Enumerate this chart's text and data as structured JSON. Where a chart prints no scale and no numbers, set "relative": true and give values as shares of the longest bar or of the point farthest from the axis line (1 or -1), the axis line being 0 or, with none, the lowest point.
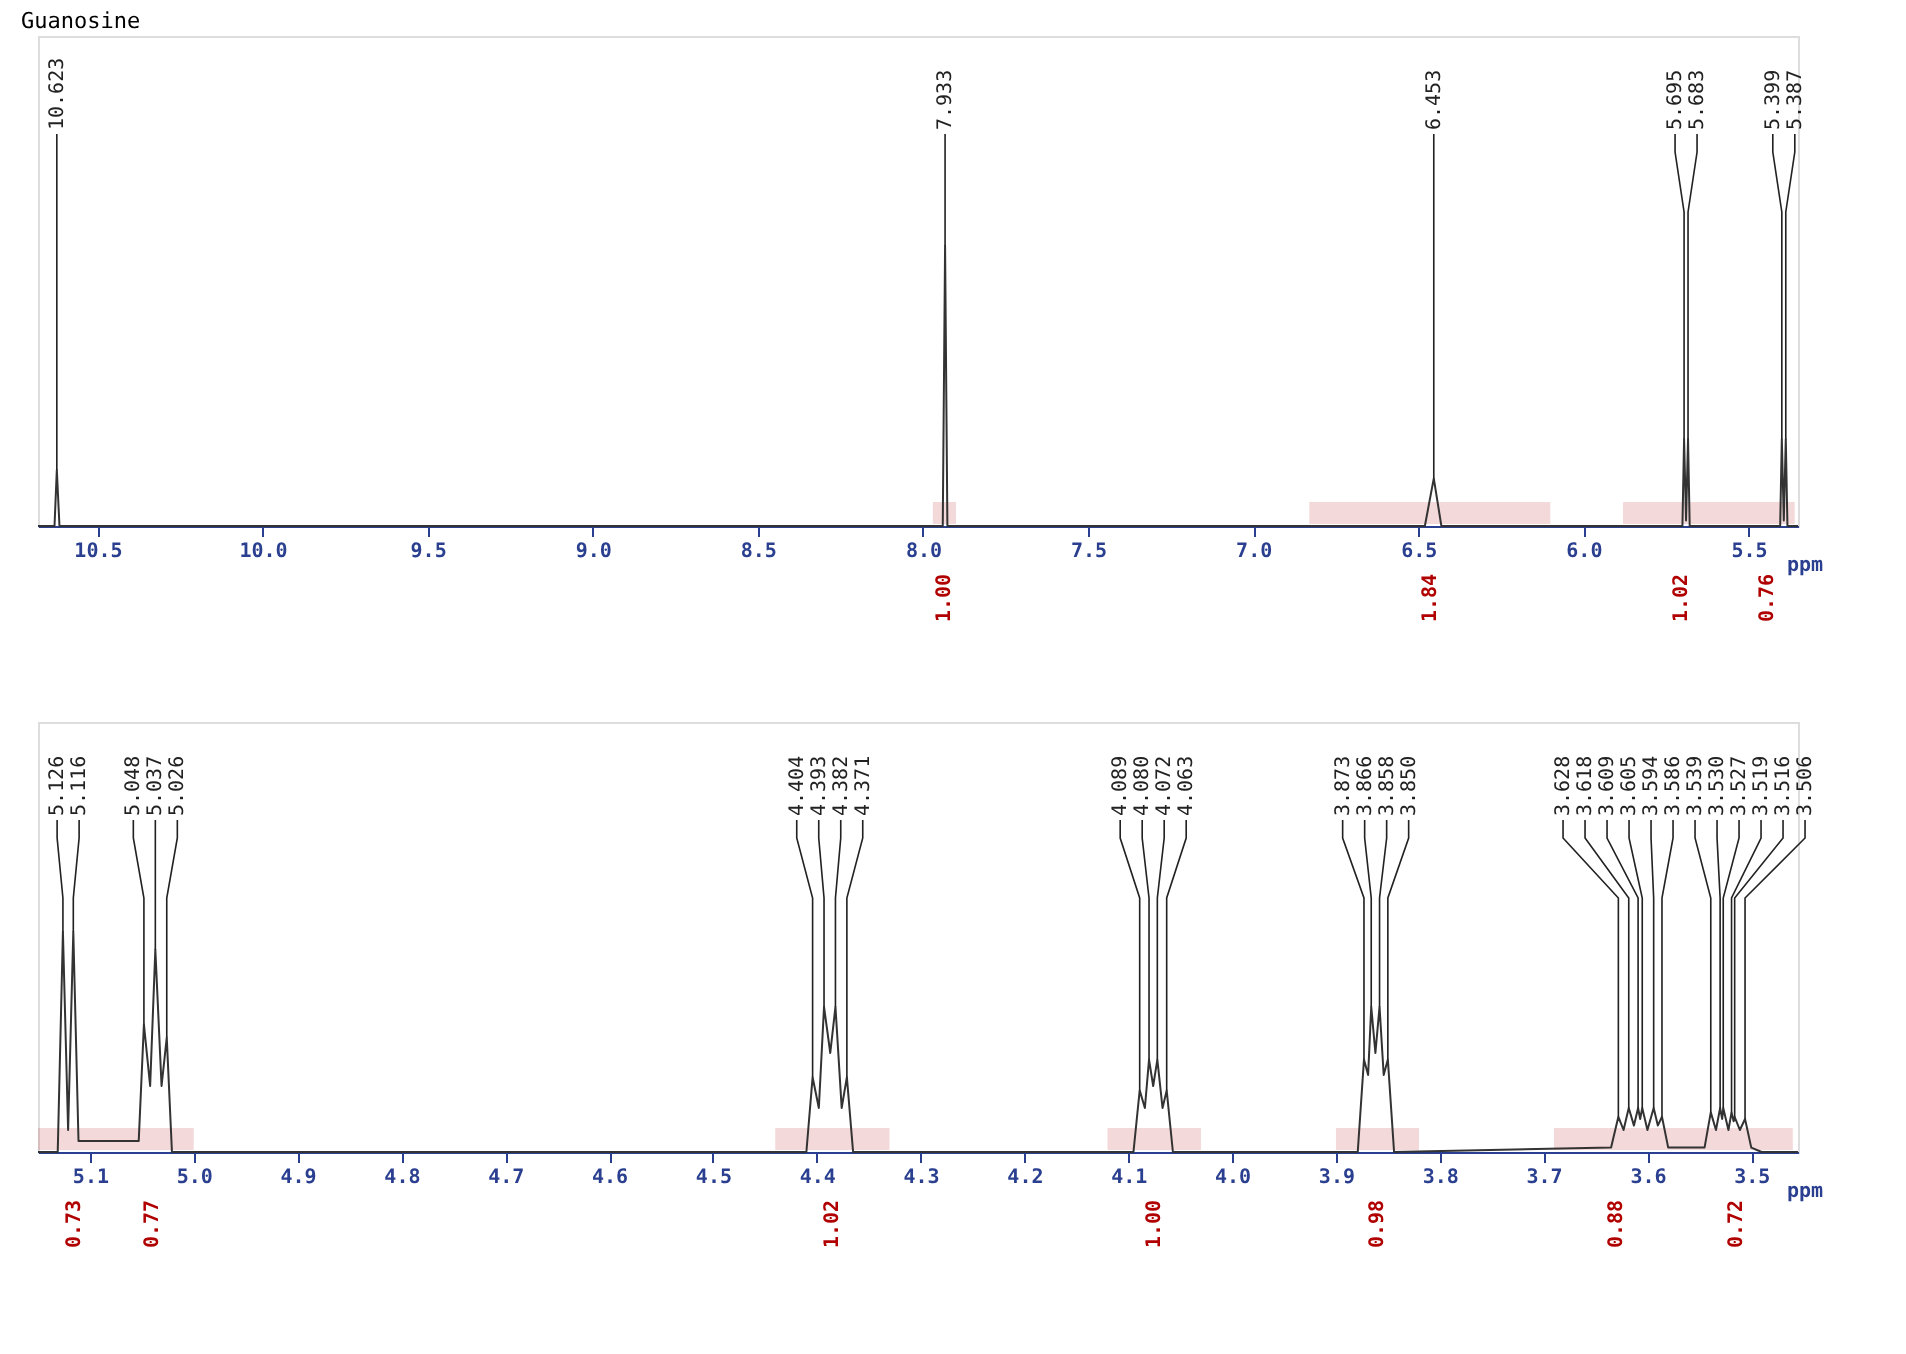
{
  "chart_data": [
    {
      "type": "line",
      "title": "Guanosine",
      "xlabel": "ppm",
      "relative": true,
      "xlim": [
        10.68,
        5.35
      ],
      "xticks": [
        10.5,
        {
          "value": 10,
          "label": "10.0"
        },
        9.5,
        {
          "value": 9,
          "label": "9.0"
        },
        8.5,
        {
          "value": 8,
          "label": "8.0"
        },
        7.5,
        {
          "value": 7,
          "label": "7.0"
        },
        6.5,
        {
          "value": 6,
          "label": "6.0"
        },
        5.5
      ],
      "grid": false,
      "series": [
        {
          "color": "#333333",
          "x": [
            10.68,
            10.63,
            10.623,
            10.615,
            7.94,
            7.933,
            7.926,
            6.48,
            6.453,
            6.43,
            5.7,
            5.695,
            5.689,
            5.683,
            5.678,
            5.404,
            5.399,
            5.393,
            5.387,
            5.382,
            5.35
          ],
          "values": [
            0,
            0,
            0.2,
            0,
            0,
            1.0,
            0,
            0,
            0.17,
            0,
            0,
            0.31,
            0.02,
            0.31,
            0,
            0,
            0.31,
            0.02,
            0.31,
            0,
            0
          ]
        }
      ],
      "annotations": [
        {
          "text": "10.623",
          "x": 10.623,
          "y": 0.2
        },
        {
          "text": "7.933",
          "x": 7.933,
          "y": 1.0
        },
        {
          "text": "6.453",
          "x": 6.453,
          "y": 0.17
        },
        {
          "text": "5.695",
          "x": 5.695,
          "y": 0.31
        },
        {
          "text": "5.683",
          "x": 5.683,
          "y": 0.31
        },
        {
          "text": "5.399",
          "x": 5.399,
          "y": 0.31
        },
        {
          "text": "5.387",
          "x": 5.387,
          "y": 0.31
        }
      ],
      "bands": [
        {
          "axis": "x",
          "from": 7.97,
          "to": 7.9,
          "label": "1.00",
          "color": "#b00000"
        },
        {
          "axis": "x",
          "from": 6.83,
          "to": 6.1,
          "label": "1.84",
          "color": "#b00000"
        },
        {
          "axis": "x",
          "from": 5.88,
          "to": 5.53,
          "label": "1.02",
          "color": "#b00000"
        },
        {
          "axis": "x",
          "from": 5.53,
          "to": 5.36,
          "label": "0.76",
          "color": "#b00000"
        }
      ]
    },
    {
      "type": "line",
      "xlabel": "ppm",
      "relative": true,
      "xlim": [
        5.15,
        3.455
      ],
      "xticks": [
        5.1,
        {
          "value": 5,
          "label": "5.0"
        },
        4.9,
        4.8,
        4.7,
        4.6,
        4.5,
        4.4,
        4.3,
        4.2,
        4.1,
        {
          "value": 4,
          "label": "4.0"
        },
        3.9,
        3.8,
        3.7,
        3.6,
        3.5
      ],
      "grid": false,
      "series": [
        {
          "color": "#333333",
          "x": [
            5.15,
            5.131,
            5.126,
            5.121,
            5.116,
            5.111,
            5.053,
            5.048,
            5.042,
            5.037,
            5.031,
            5.026,
            5.021,
            4.41,
            4.404,
            4.398,
            4.393,
            4.387,
            4.382,
            4.376,
            4.371,
            4.365,
            4.095,
            4.089,
            4.084,
            4.08,
            4.076,
            4.072,
            4.067,
            4.063,
            4.057,
            3.879,
            3.873,
            3.869,
            3.866,
            3.862,
            3.858,
            3.854,
            3.85,
            3.844,
            3.635,
            3.628,
            3.623,
            3.618,
            3.613,
            3.609,
            3.607,
            3.605,
            3.6,
            3.594,
            3.59,
            3.586,
            3.58,
            3.545,
            3.539,
            3.534,
            3.53,
            3.528,
            3.527,
            3.522,
            3.519,
            3.517,
            3.516,
            3.511,
            3.506,
            3.5,
            3.49,
            3.455
          ],
          "values": [
            0,
            0,
            1.0,
            0.1,
            1.0,
            0.05,
            0.05,
            0.58,
            0.3,
            0.92,
            0.3,
            0.52,
            0,
            0,
            0.34,
            0.2,
            0.66,
            0.45,
            0.66,
            0.2,
            0.34,
            0,
            0,
            0.28,
            0.2,
            0.42,
            0.3,
            0.42,
            0.2,
            0.28,
            0,
            0,
            0.42,
            0.35,
            0.66,
            0.45,
            0.66,
            0.35,
            0.42,
            0,
            0.02,
            0.16,
            0.1,
            0.2,
            0.12,
            0.2,
            0.15,
            0.2,
            0.1,
            0.2,
            0.12,
            0.16,
            0.02,
            0.02,
            0.18,
            0.1,
            0.2,
            0.15,
            0.2,
            0.1,
            0.18,
            0.14,
            0.16,
            0.1,
            0.15,
            0.02,
            0,
            0
          ]
        }
      ],
      "annotations": [
        {
          "text": "5.126",
          "x": 5.126,
          "y": 1.0
        },
        {
          "text": "5.116",
          "x": 5.116,
          "y": 1.0
        },
        {
          "text": "5.048",
          "x": 5.048,
          "y": 0.58
        },
        {
          "text": "5.037",
          "x": 5.037,
          "y": 0.92
        },
        {
          "text": "5.026",
          "x": 5.026,
          "y": 0.52
        },
        {
          "text": "4.404",
          "x": 4.404,
          "y": 0.34
        },
        {
          "text": "4.393",
          "x": 4.393,
          "y": 0.66
        },
        {
          "text": "4.382",
          "x": 4.382,
          "y": 0.66
        },
        {
          "text": "4.371",
          "x": 4.371,
          "y": 0.34
        },
        {
          "text": "4.089",
          "x": 4.089,
          "y": 0.28
        },
        {
          "text": "4.080",
          "x": 4.08,
          "y": 0.42
        },
        {
          "text": "4.072",
          "x": 4.072,
          "y": 0.42
        },
        {
          "text": "4.063",
          "x": 4.063,
          "y": 0.28
        },
        {
          "text": "3.873",
          "x": 3.873,
          "y": 0.42
        },
        {
          "text": "3.866",
          "x": 3.866,
          "y": 0.66
        },
        {
          "text": "3.858",
          "x": 3.858,
          "y": 0.66
        },
        {
          "text": "3.850",
          "x": 3.85,
          "y": 0.42
        },
        {
          "text": "3.628",
          "x": 3.628,
          "y": 0.16
        },
        {
          "text": "3.618",
          "x": 3.618,
          "y": 0.2
        },
        {
          "text": "3.609",
          "x": 3.609,
          "y": 0.2
        },
        {
          "text": "3.605",
          "x": 3.605,
          "y": 0.2
        },
        {
          "text": "3.594",
          "x": 3.594,
          "y": 0.2
        },
        {
          "text": "3.586",
          "x": 3.586,
          "y": 0.16
        },
        {
          "text": "3.539",
          "x": 3.539,
          "y": 0.18
        },
        {
          "text": "3.530",
          "x": 3.53,
          "y": 0.2
        },
        {
          "text": "3.527",
          "x": 3.527,
          "y": 0.2
        },
        {
          "text": "3.519",
          "x": 3.519,
          "y": 0.18
        },
        {
          "text": "3.516",
          "x": 3.516,
          "y": 0.16
        },
        {
          "text": "3.506",
          "x": 3.506,
          "y": 0.15
        }
      ],
      "bands": [
        {
          "axis": "x",
          "from": 5.15,
          "to": 5.08,
          "label": "0.73",
          "color": "#b00000"
        },
        {
          "axis": "x",
          "from": 5.08,
          "to": 5.0,
          "label": "0.77",
          "color": "#b00000"
        },
        {
          "axis": "x",
          "from": 4.44,
          "to": 4.33,
          "label": "1.02",
          "color": "#b00000"
        },
        {
          "axis": "x",
          "from": 4.12,
          "to": 4.03,
          "label": "1.00",
          "color": "#b00000"
        },
        {
          "axis": "x",
          "from": 3.9,
          "to": 3.82,
          "label": "0.98",
          "color": "#b00000"
        },
        {
          "axis": "x",
          "from": 3.69,
          "to": 3.57,
          "label": "0.88",
          "color": "#b00000"
        },
        {
          "axis": "x",
          "from": 3.57,
          "to": 3.46,
          "label": "0.72",
          "color": "#b00000"
        }
      ]
    }
  ]
}
